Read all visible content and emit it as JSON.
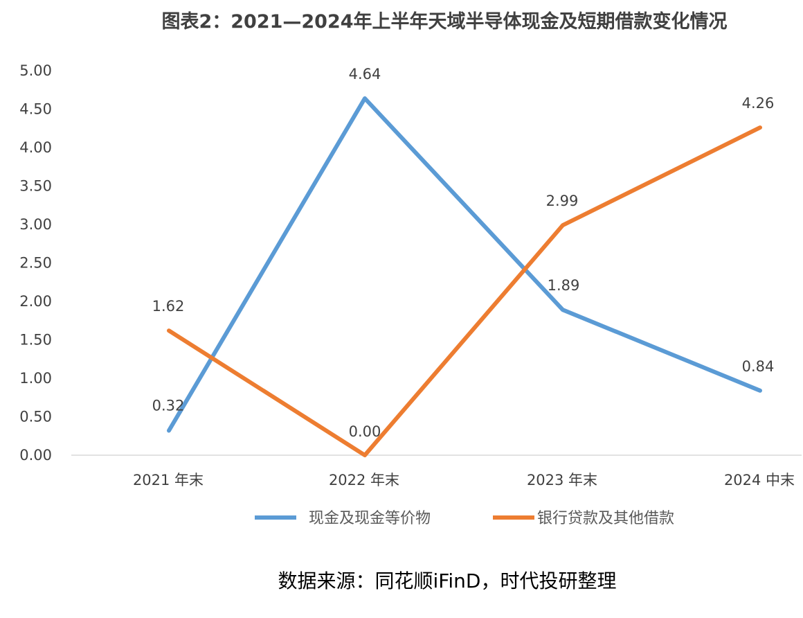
{
  "chart_data": {
    "type": "line",
    "title": "图表2：2021—2024年上半年天域半导体现金及短期借款变化情况",
    "categories": [
      "2021 年末",
      "2022 年末",
      "2023 年末",
      "2024 中末"
    ],
    "ylim": [
      0,
      5
    ],
    "yticks": [
      "0.00",
      "0.50",
      "1.00",
      "1.50",
      "2.00",
      "2.50",
      "3.00",
      "3.50",
      "4.00",
      "4.50",
      "5.00"
    ],
    "grid": false,
    "legend_position": "bottom",
    "series": [
      {
        "name": "现金及现金等价物",
        "color": "#5B9BD5",
        "values": [
          0.32,
          4.64,
          1.89,
          0.84
        ],
        "labels": [
          "0.32",
          "4.64",
          "1.89",
          "0.84"
        ]
      },
      {
        "name": "银行贷款及其他借款",
        "color": "#ED7D31",
        "values": [
          1.62,
          0.0,
          2.99,
          4.26
        ],
        "labels": [
          "1.62",
          "0.00",
          "2.99",
          "4.26"
        ]
      }
    ],
    "source": "数据来源：同花顺iFinD，时代投研整理"
  }
}
